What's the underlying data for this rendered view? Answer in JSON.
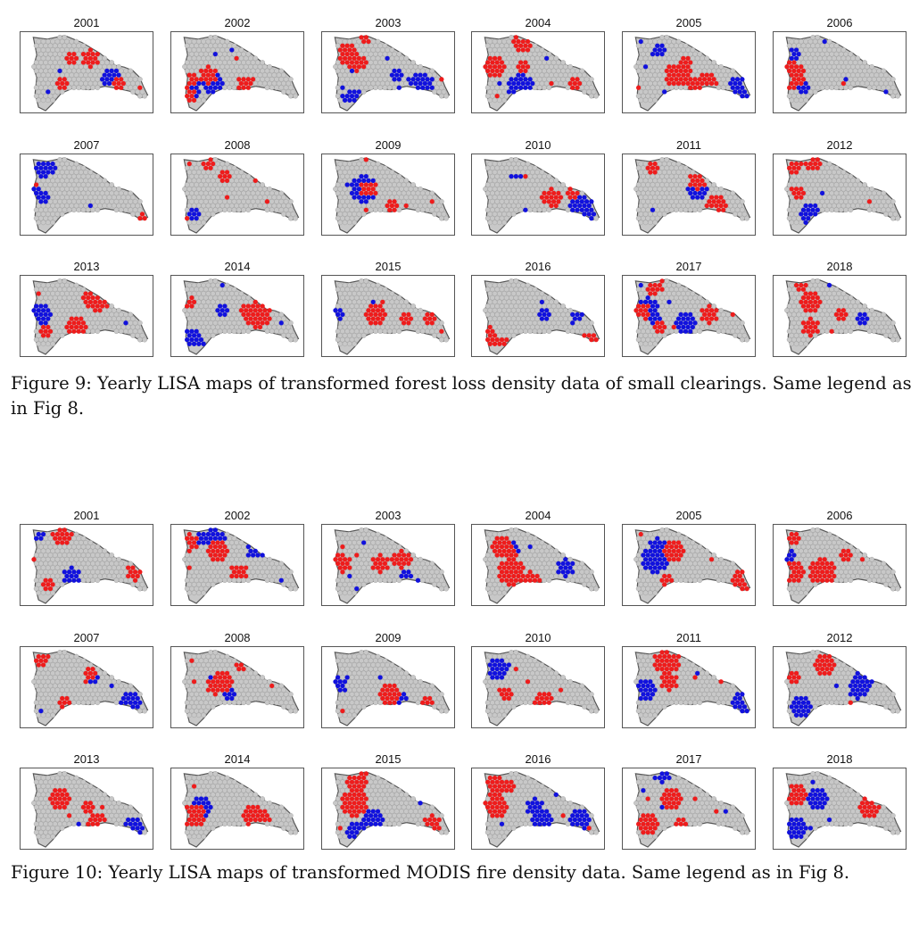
{
  "figure9": {
    "caption": "Figure 9: Yearly LISA maps of transformed forest loss density data of small clearings. Same legend as in Fig 8.",
    "years": [
      "2001",
      "2002",
      "2003",
      "2004",
      "2005",
      "2006",
      "2007",
      "2008",
      "2009",
      "2010",
      "2011",
      "2012",
      "2013",
      "2014",
      "2015",
      "2016",
      "2017",
      "2018"
    ]
  },
  "figure10": {
    "caption": "Figure 10: Yearly LISA maps of transformed MODIS fire density data. Same legend as in Fig 8.",
    "years": [
      "2001",
      "2002",
      "2003",
      "2004",
      "2005",
      "2006",
      "2007",
      "2008",
      "2009",
      "2010",
      "2011",
      "2012",
      "2013",
      "2014",
      "2015",
      "2016",
      "2017",
      "2018"
    ]
  },
  "colors": {
    "high_high": "#ee1c1c",
    "low_low": "#1111dd",
    "not_significant": "#c8c8c8",
    "outline": "#555555"
  }
}
